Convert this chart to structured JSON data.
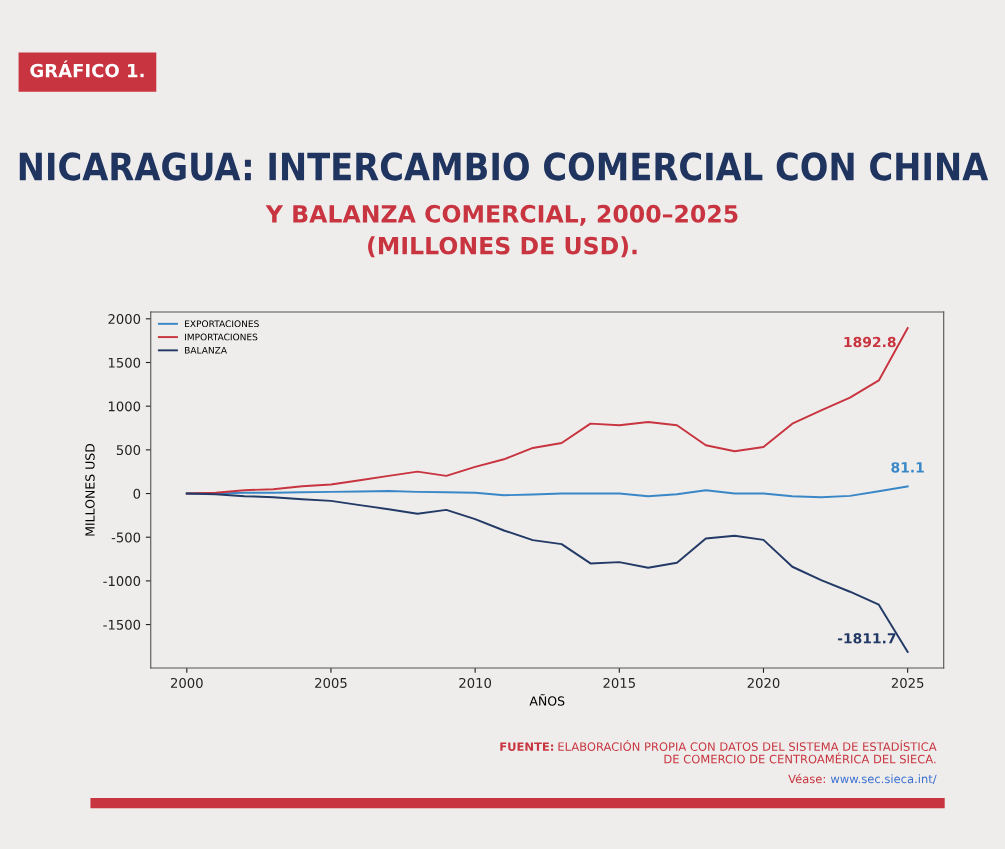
{
  "chart_data": {
    "type": "line",
    "title": "NICARAGUA: INTERCAMBIO COMERCIAL CON CHINA",
    "subtitle": "Y BALANZA COMERCIAL, 2000–2025\n(MILLONES DE USD).",
    "xlabel": "AÑOS",
    "ylabel": "MILLONES USD",
    "annotations": [
      "GRÁFICO 1.",
      "FUENTE:",
      "ELABORACIÓN PROPIA CON DATOS DEL SISTEMA DE ESTADÍSTICA\nDE COMERCIO DE CENTROAMÉRICA DEL SIECA.",
      "Véase:",
      "www.sec.sieca.int/"
    ],
    "x": [
      2000,
      2001,
      2002,
      2003,
      2004,
      2005,
      2006,
      2007,
      2008,
      2009,
      2010,
      2011,
      2012,
      2013,
      2014,
      2015,
      2016,
      2017,
      2018,
      2019,
      2020,
      2021,
      2022,
      2023,
      2024,
      2025
    ],
    "series": [
      {
        "name": "EXPORTACIONES",
        "color": "#3a87c8",
        "values": [
          0,
          0,
          8,
          8,
          15,
          19,
          23,
          30,
          19,
          15,
          8,
          -19,
          -11,
          0,
          0,
          0,
          -30,
          -8,
          38,
          0,
          0,
          -30,
          -42,
          -27,
          27,
          81.1
        ],
        "value_labels": [
          null,
          null,
          null,
          null,
          null,
          null,
          null,
          null,
          null,
          null,
          null,
          null,
          null,
          null,
          null,
          null,
          null,
          null,
          null,
          null,
          null,
          null,
          null,
          null,
          null,
          "81.1"
        ]
      },
      {
        "name": "IMPORTACIONES",
        "color": "#c8343f",
        "values": [
          0,
          8,
          38,
          50,
          84,
          103,
          152,
          202,
          251,
          202,
          305,
          392,
          522,
          579,
          800,
          781,
          819,
          781,
          552,
          484,
          533,
          800,
          953,
          1097,
          1295,
          1892.8
        ],
        "value_labels": [
          null,
          null,
          null,
          null,
          null,
          null,
          null,
          null,
          null,
          null,
          null,
          null,
          null,
          null,
          null,
          null,
          null,
          null,
          null,
          null,
          null,
          null,
          null,
          null,
          null,
          "1892.8"
        ]
      },
      {
        "name": "BALANZA",
        "color": "#233a66",
        "values": [
          0,
          -8,
          -30,
          -42,
          -65,
          -84,
          -133,
          -179,
          -232,
          -187,
          -293,
          -423,
          -533,
          -579,
          -800,
          -785,
          -850,
          -793,
          -514,
          -484,
          -530,
          -838,
          -991,
          -1124,
          -1272,
          -1811.7
        ],
        "value_labels": [
          null,
          null,
          null,
          null,
          null,
          null,
          null,
          null,
          null,
          null,
          null,
          null,
          null,
          null,
          null,
          null,
          null,
          null,
          null,
          null,
          null,
          null,
          null,
          null,
          null,
          "-1811.7"
        ]
      }
    ],
    "xlim": [
      1998.75,
      2026.25
    ],
    "xticks": [
      2000,
      2005,
      2010,
      2015,
      2020,
      2025
    ],
    "ylim": [
      -1997,
      2078
    ],
    "yticks": [
      -1500,
      -1000,
      -500,
      0,
      500,
      1000,
      1500,
      2000
    ],
    "grid": false,
    "legend": "top left",
    "marker": "none",
    "line_style": "solid"
  }
}
